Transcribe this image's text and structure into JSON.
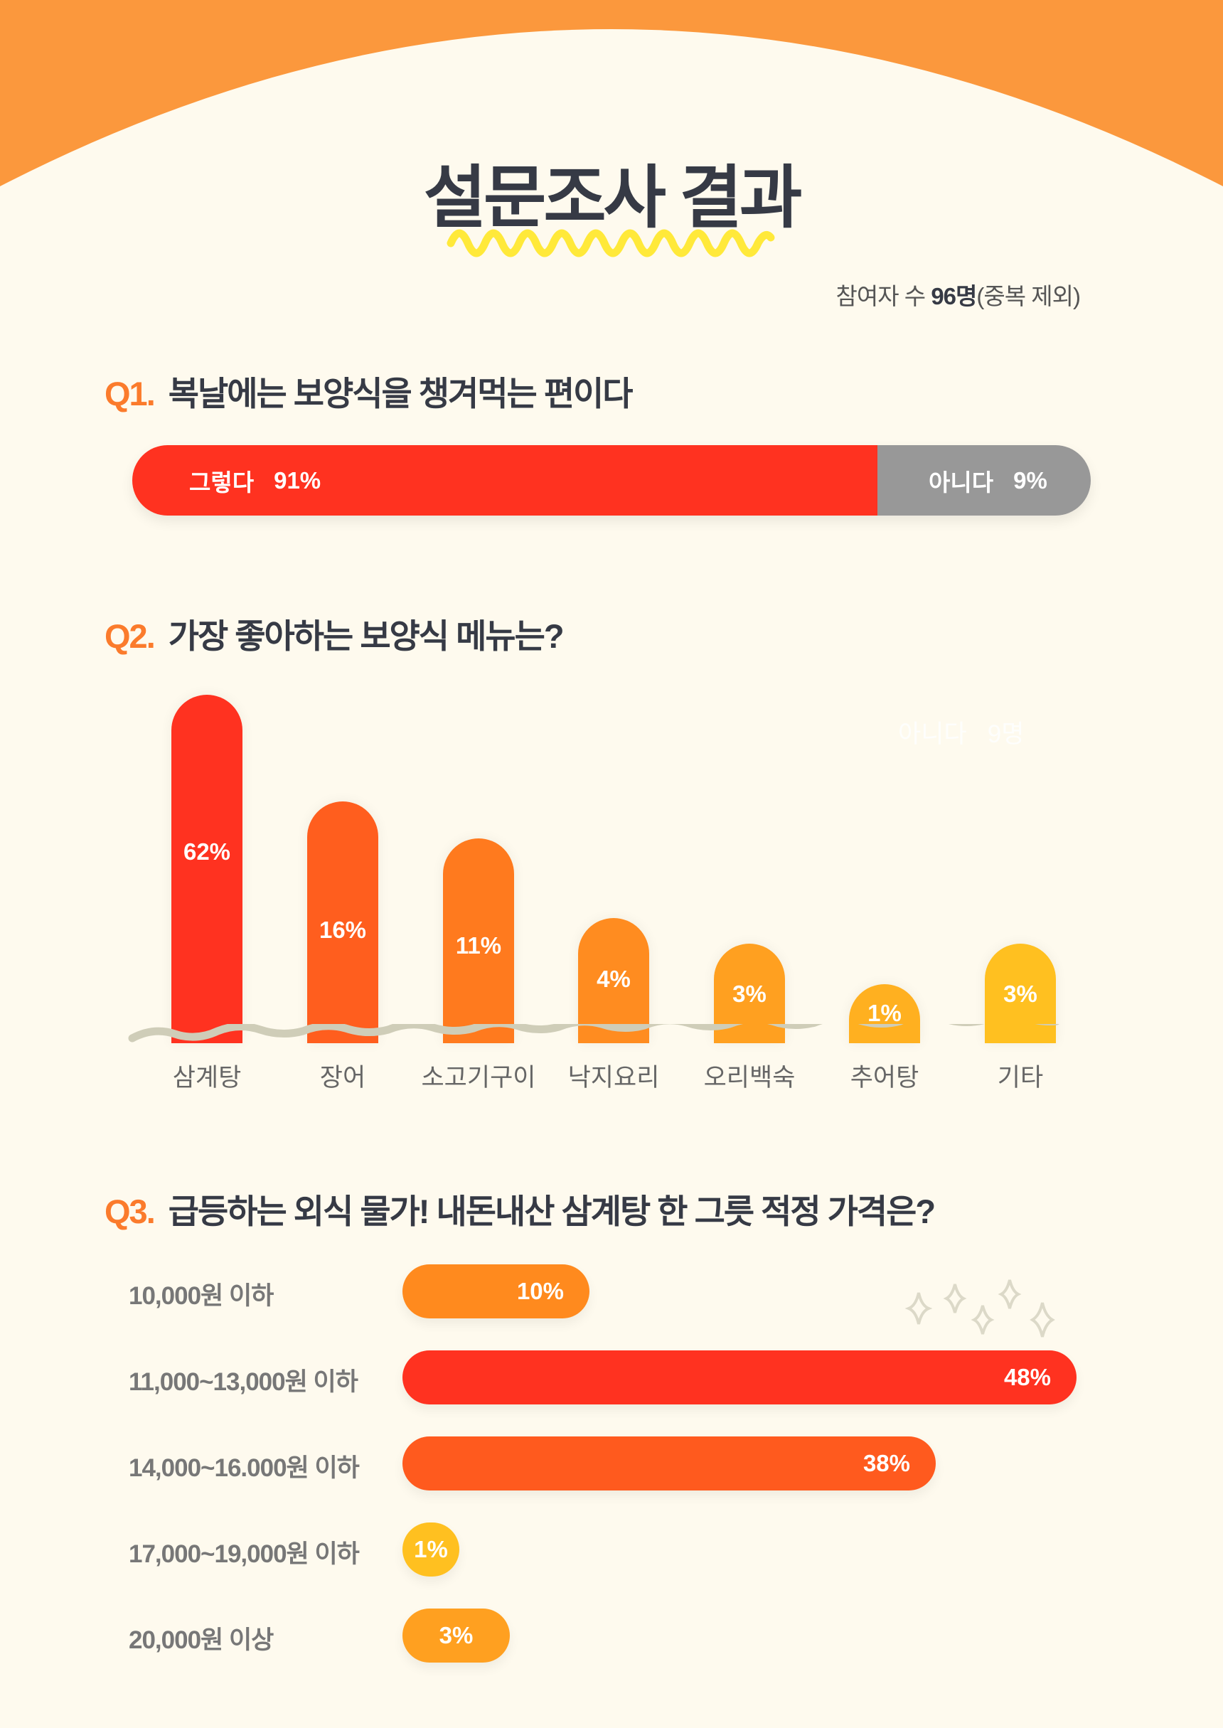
{
  "header": {
    "title": "설문조사 결과",
    "participants_prefix": "참여자 수 ",
    "participants_count": "96명",
    "participants_suffix": "(중복 제외)"
  },
  "colors": {
    "background": "#FEFAEE",
    "top_arc": "#FB983D",
    "accent_red": "#FF3220",
    "grey": "#989898",
    "underline": "#FFE93A"
  },
  "q1": {
    "number": "Q1.",
    "question": "복날에는 보양식을 챙겨먹는 편이다",
    "yes_label": "그렇다",
    "yes_value": "91%",
    "no_label": "아니다",
    "no_value": "9%"
  },
  "q2": {
    "number": "Q2.",
    "question": "가장 좋아하는 보양식 메뉴는?",
    "ghost_label": "아니다",
    "ghost_value": "9명"
  },
  "q3": {
    "number": "Q3.",
    "question": "급등하는 외식 물가! 내돈내산 삼계탕 한 그릇 적정 가격은?"
  },
  "chart_data": [
    {
      "type": "bar",
      "title": "복날에는 보양식을 챙겨먹는 편이다",
      "categories": [
        "그렇다",
        "아니다"
      ],
      "values": [
        91,
        9
      ],
      "unit": "%",
      "orientation": "stacked-horizontal"
    },
    {
      "type": "bar",
      "title": "가장 좋아하는 보양식 메뉴는?",
      "categories": [
        "삼계탕",
        "장어",
        "소고기구이",
        "낙지요리",
        "오리백숙",
        "추어탕",
        "기타"
      ],
      "values": [
        62,
        16,
        11,
        4,
        3,
        1,
        3
      ],
      "labels": [
        "62%",
        "16%",
        "11%",
        "4%",
        "3%",
        "1%",
        "3%"
      ],
      "unit": "%",
      "colors": [
        "#FF3220",
        "#FF5E1E",
        "#FF7A1E",
        "#FF8C20",
        "#FFA020",
        "#FFB020",
        "#FFC020"
      ]
    },
    {
      "type": "bar",
      "orientation": "horizontal",
      "title": "급등하는 외식 물가! 내돈내산 삼계탕 한 그릇 적정 가격은?",
      "categories": [
        "10,000원 이하",
        "11,000~13,000원 이하",
        "14,000~16.000원 이하",
        "17,000~19,000원 이하",
        "20,000원 이상"
      ],
      "values": [
        10,
        48,
        38,
        1,
        3
      ],
      "labels": [
        "10%",
        "48%",
        "38%",
        "1%",
        "3%"
      ],
      "unit": "%",
      "colors": [
        "#FF8A1E",
        "#FF3220",
        "#FF5A1E",
        "#FFC020",
        "#FFA020"
      ]
    }
  ]
}
